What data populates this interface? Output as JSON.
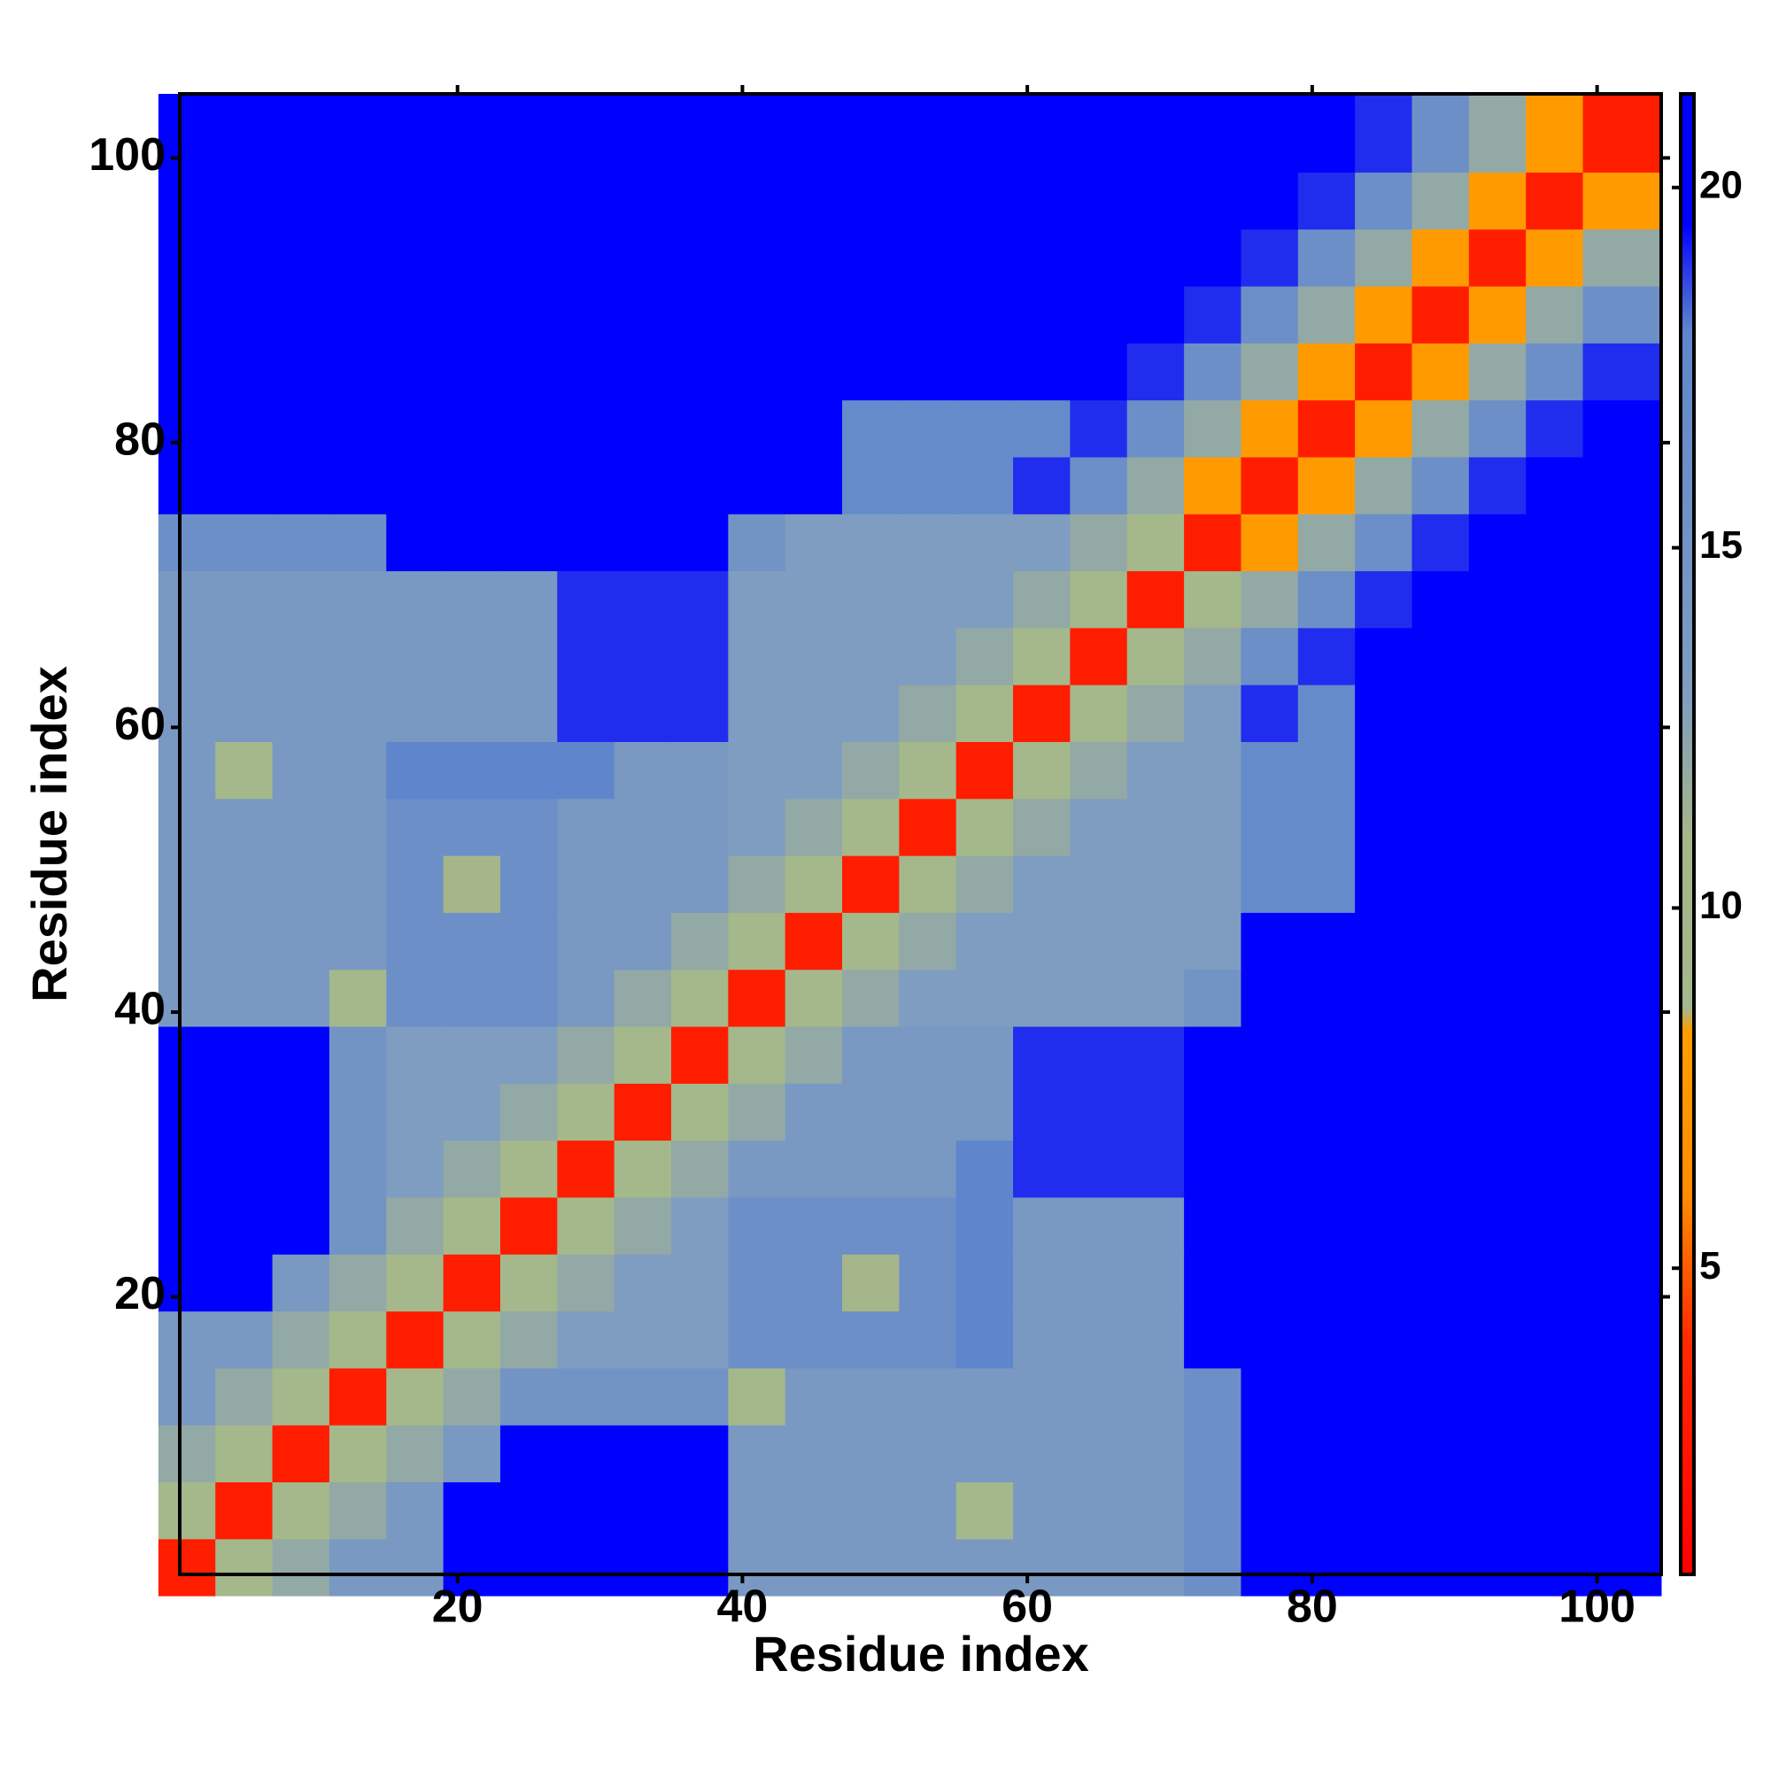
{
  "chart_data": {
    "type": "heatmap",
    "x_label": "Residue index",
    "y_label": "Residue index",
    "x": [
      1,
      5,
      9,
      13,
      17,
      21,
      25,
      29,
      33,
      37,
      41,
      45,
      49,
      53,
      57,
      61,
      65,
      69,
      73,
      77,
      81,
      85,
      89,
      93,
      97,
      101
    ],
    "y": [
      1,
      5,
      9,
      13,
      17,
      21,
      25,
      29,
      33,
      37,
      41,
      45,
      49,
      53,
      57,
      61,
      65,
      69,
      73,
      77,
      81,
      85,
      89,
      93,
      97,
      101
    ],
    "xlim": [
      0.5,
      104.5
    ],
    "ylim": [
      0.5,
      104.5
    ],
    "xticks": [
      20,
      40,
      60,
      80,
      100
    ],
    "yticks": [
      20,
      40,
      60,
      80,
      100
    ],
    "clim": [
      0.75,
      21.3
    ],
    "cticks": [
      5,
      10,
      15,
      20
    ],
    "colorscale": [
      [
        0.75,
        "#ff0000"
      ],
      [
        4,
        "#ff2a00"
      ],
      [
        6,
        "#ff8c00"
      ],
      [
        8.3,
        "#ff9d00"
      ],
      [
        8.6,
        "#a3b88c"
      ],
      [
        11,
        "#a6b58a"
      ],
      [
        13,
        "#7f9dc0"
      ],
      [
        18,
        "#5f86cc"
      ],
      [
        19.5,
        "#0000ff"
      ],
      [
        21.3,
        "#0000ff"
      ]
    ],
    "values": [
      [
        3,
        9,
        12,
        14,
        14,
        21,
        21,
        21,
        21,
        21,
        14,
        14,
        14,
        14,
        14,
        14,
        14,
        14,
        16,
        21,
        21,
        21,
        21,
        21,
        21,
        21
      ],
      [
        9,
        3,
        9,
        12,
        14,
        21,
        21,
        21,
        21,
        21,
        14,
        14,
        14,
        14,
        9,
        14,
        14,
        14,
        16,
        21,
        21,
        21,
        21,
        21,
        21,
        21
      ],
      [
        12,
        9,
        3,
        9,
        12,
        14,
        21,
        21,
        21,
        21,
        14,
        14,
        14,
        14,
        14,
        14,
        14,
        14,
        16,
        21,
        21,
        21,
        21,
        21,
        21,
        21
      ],
      [
        14,
        12,
        9,
        3,
        9,
        12,
        15,
        15,
        15,
        15,
        9,
        14,
        14,
        14,
        14,
        14,
        14,
        14,
        16,
        21,
        21,
        21,
        21,
        21,
        21,
        21
      ],
      [
        14,
        14,
        12,
        9,
        3,
        9,
        12,
        13,
        13,
        13,
        16,
        16,
        16,
        16,
        18,
        14,
        14,
        14,
        20,
        21,
        21,
        21,
        21,
        21,
        21,
        21
      ],
      [
        21,
        21,
        14,
        12,
        9,
        3,
        9,
        12,
        13,
        13,
        16,
        16,
        10,
        16,
        18,
        14,
        14,
        14,
        20,
        21,
        21,
        21,
        21,
        21,
        21,
        21
      ],
      [
        21,
        21,
        21,
        15,
        12,
        9,
        3,
        9,
        12,
        13,
        16,
        16,
        16,
        16,
        18,
        14,
        14,
        14,
        20,
        21,
        21,
        21,
        21,
        21,
        21,
        21
      ],
      [
        21,
        21,
        21,
        15,
        13,
        12,
        9,
        3,
        9,
        12,
        14,
        14,
        14,
        14,
        18,
        19,
        19,
        19,
        20,
        21,
        21,
        21,
        21,
        21,
        21,
        21
      ],
      [
        21,
        21,
        21,
        15,
        13,
        13,
        12,
        9,
        3,
        9,
        12,
        14,
        14,
        14,
        14,
        19,
        19,
        19,
        20,
        21,
        21,
        21,
        21,
        21,
        21,
        21
      ],
      [
        21,
        21,
        21,
        15,
        13,
        13,
        13,
        12,
        9,
        3,
        9,
        12,
        14,
        14,
        14,
        19,
        19,
        19,
        20,
        21,
        21,
        21,
        21,
        21,
        21,
        21
      ],
      [
        14,
        14,
        14,
        9,
        16,
        16,
        16,
        14,
        12,
        9,
        3,
        9,
        12,
        13,
        13,
        13,
        13,
        13,
        15,
        21,
        21,
        21,
        21,
        21,
        21,
        21
      ],
      [
        14,
        14,
        14,
        14,
        16,
        16,
        16,
        14,
        14,
        12,
        9,
        3,
        9,
        12,
        13,
        13,
        13,
        13,
        13,
        21,
        21,
        21,
        21,
        21,
        21,
        21
      ],
      [
        14,
        14,
        14,
        14,
        16,
        10,
        16,
        14,
        14,
        14,
        12,
        9,
        3,
        9,
        12,
        13,
        13,
        13,
        13,
        17,
        17,
        21,
        21,
        21,
        21,
        21
      ],
      [
        14,
        14,
        14,
        14,
        16,
        16,
        16,
        14,
        14,
        14,
        13,
        12,
        9,
        3,
        9,
        12,
        13,
        13,
        13,
        17,
        17,
        21,
        21,
        21,
        21,
        21
      ],
      [
        14,
        9,
        14,
        14,
        18,
        18,
        18,
        18,
        14,
        14,
        13,
        13,
        12,
        9,
        3,
        9,
        12,
        13,
        13,
        17,
        17,
        21,
        21,
        21,
        21,
        21
      ],
      [
        14,
        14,
        14,
        14,
        14,
        14,
        14,
        19,
        19,
        19,
        13,
        13,
        13,
        12,
        9,
        3,
        9,
        12,
        13,
        19,
        17,
        21,
        21,
        21,
        21,
        21
      ],
      [
        14,
        14,
        14,
        14,
        14,
        14,
        14,
        19,
        19,
        19,
        13,
        13,
        13,
        13,
        12,
        9,
        3,
        9,
        12,
        16,
        19,
        21,
        21,
        21,
        21,
        21
      ],
      [
        14,
        14,
        14,
        14,
        14,
        14,
        14,
        19,
        19,
        19,
        13,
        13,
        13,
        13,
        13,
        12,
        9,
        3,
        9,
        12,
        16,
        19,
        21,
        21,
        21,
        21
      ],
      [
        16,
        16,
        16,
        16,
        20,
        20,
        20,
        20,
        20,
        20,
        15,
        13,
        13,
        13,
        13,
        13,
        12,
        9,
        3,
        8,
        12,
        16,
        19,
        21,
        21,
        21
      ],
      [
        21,
        21,
        21,
        21,
        21,
        21,
        21,
        21,
        21,
        21,
        21,
        21,
        17,
        17,
        17,
        19,
        16,
        12,
        8,
        3,
        8,
        12,
        16,
        19,
        21,
        21
      ],
      [
        21,
        21,
        21,
        21,
        21,
        21,
        21,
        21,
        21,
        21,
        21,
        21,
        17,
        17,
        17,
        17,
        19,
        16,
        12,
        8,
        3,
        8,
        12,
        16,
        19,
        21
      ],
      [
        21,
        21,
        21,
        21,
        21,
        21,
        21,
        21,
        21,
        21,
        21,
        21,
        21,
        21,
        21,
        21,
        21,
        19,
        16,
        12,
        8,
        3,
        8,
        12,
        16,
        19
      ],
      [
        21,
        21,
        21,
        21,
        21,
        21,
        21,
        21,
        21,
        21,
        21,
        21,
        21,
        21,
        21,
        21,
        21,
        21,
        19,
        16,
        12,
        8,
        3,
        8,
        12,
        16
      ],
      [
        21,
        21,
        21,
        21,
        21,
        21,
        21,
        21,
        21,
        21,
        21,
        21,
        21,
        21,
        21,
        21,
        21,
        21,
        21,
        19,
        16,
        12,
        8,
        3,
        8,
        12
      ],
      [
        21,
        21,
        21,
        21,
        21,
        21,
        21,
        21,
        21,
        21,
        21,
        21,
        21,
        21,
        21,
        21,
        21,
        21,
        21,
        21,
        19,
        16,
        12,
        8,
        3,
        8
      ],
      [
        21,
        21,
        21,
        21,
        21,
        21,
        21,
        21,
        21,
        21,
        21,
        21,
        21,
        21,
        21,
        21,
        21,
        21,
        21,
        21,
        21,
        19,
        16,
        12,
        8,
        3
      ]
    ]
  }
}
